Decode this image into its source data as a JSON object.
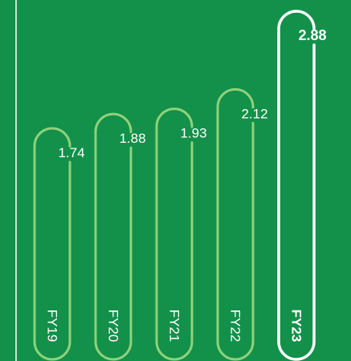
{
  "colors": {
    "background": "#13904a",
    "bar_outline": "#8ed27a",
    "highlight_outline": "#ffffff",
    "text": "#ffffff",
    "divider": "#ffffff"
  },
  "chart_data": {
    "type": "bar",
    "categories": [
      "FY19",
      "FY20",
      "FY21",
      "FY22",
      "FY23"
    ],
    "values": [
      1.74,
      1.88,
      1.93,
      2.12,
      2.88
    ],
    "value_labels": [
      "1.74",
      "1.88",
      "1.93",
      "2.12",
      "2.88"
    ],
    "highlight": "FY23",
    "title": "",
    "xlabel": "",
    "ylabel": "",
    "legend": "none",
    "grid": false
  }
}
